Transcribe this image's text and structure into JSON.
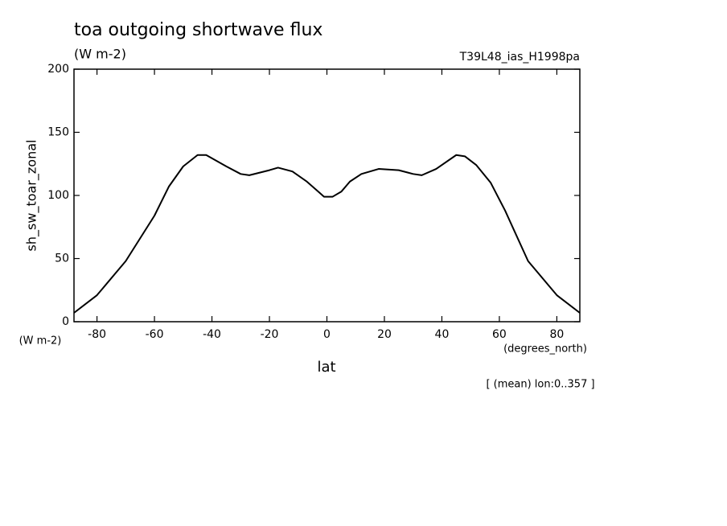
{
  "chart_data": {
    "type": "line",
    "title": "toa outgoing shortwave flux",
    "subtitle": "(W m-2)",
    "run_label": "T39L48_ias_H1998pa",
    "y_label": "sh_sw_toar_zonal",
    "y_unit": "(W m-2)",
    "x_label": "lat",
    "x_unit": "(degrees_north)",
    "note": "[ (mean) lon:0..357 ]",
    "x": [
      -88,
      -80,
      -70,
      -60,
      -55,
      -50,
      -45,
      -42,
      -35,
      -30,
      -27,
      -20,
      -17,
      -12,
      -7,
      -3,
      -1,
      2,
      5,
      8,
      12,
      18,
      25,
      30,
      33,
      38,
      45,
      48,
      52,
      57,
      62,
      70,
      80,
      88
    ],
    "series": [
      {
        "name": "sh_sw_toar_zonal",
        "color": "#000000",
        "values": [
          7,
          21,
          48,
          84,
          107,
          123,
          132,
          132,
          123,
          117,
          116,
          120,
          122,
          119,
          111,
          103,
          99,
          99,
          103,
          111,
          117,
          121,
          120,
          117,
          116,
          121,
          132,
          131,
          124,
          110,
          88,
          48,
          21,
          7
        ]
      }
    ],
    "xlim": [
      -88,
      88
    ],
    "xticks": [
      -80,
      -60,
      -40,
      -20,
      0,
      20,
      40,
      60,
      80
    ],
    "ylim": [
      0,
      200
    ],
    "yticks": [
      0,
      50,
      100,
      150,
      200
    ],
    "grid": false
  }
}
